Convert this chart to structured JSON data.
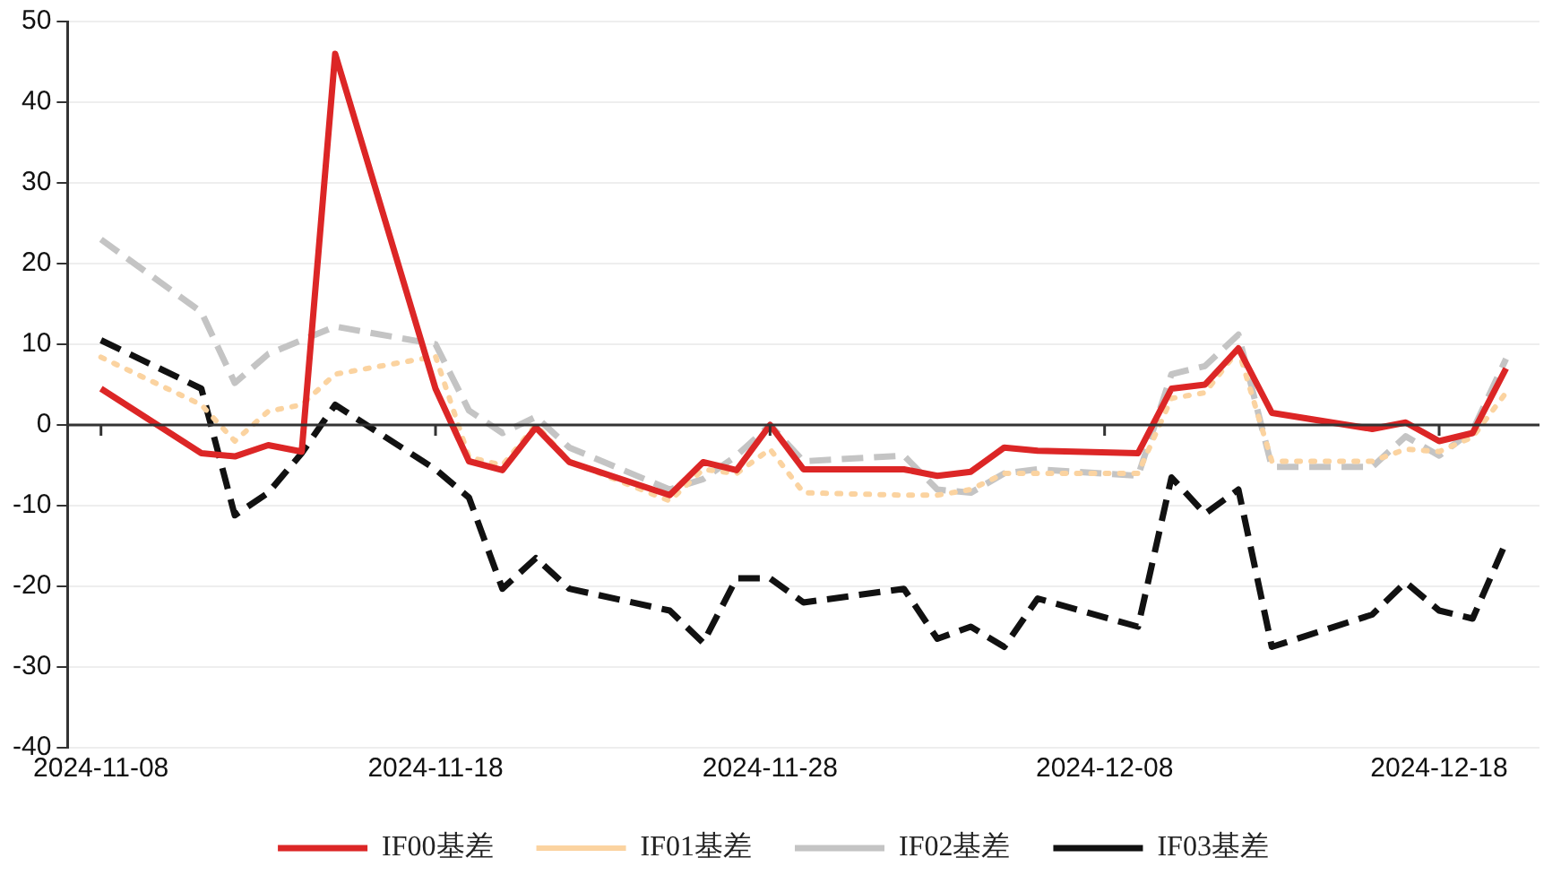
{
  "chart_data": {
    "type": "line",
    "x": [
      "2024-11-08",
      "2024-11-11",
      "2024-11-12",
      "2024-11-13",
      "2024-11-14",
      "2024-11-15",
      "2024-11-18",
      "2024-11-19",
      "2024-11-20",
      "2024-11-21",
      "2024-11-22",
      "2024-11-25",
      "2024-11-26",
      "2024-11-27",
      "2024-11-28",
      "2024-11-29",
      "2024-12-02",
      "2024-12-03",
      "2024-12-04",
      "2024-12-05",
      "2024-12-06",
      "2024-12-09",
      "2024-12-10",
      "2024-12-11",
      "2024-12-12",
      "2024-12-13",
      "2024-12-16",
      "2024-12-17",
      "2024-12-18",
      "2024-12-19",
      "2024-12-20"
    ],
    "series": [
      {
        "name": "IF00基差",
        "color": "#dc2626",
        "line_style": "solid",
        "values": [
          4.5,
          -3.5,
          -3.9,
          -2.5,
          -3.3,
          46,
          4.5,
          -4.5,
          -5.6,
          -0.3,
          -4.6,
          -8.7,
          -4.6,
          -5.6,
          0,
          -5.5,
          -5.5,
          -6.3,
          -5.8,
          -2.8,
          -3.2,
          -3.5,
          4.5,
          5,
          9.5,
          1.5,
          -0.5,
          0.3,
          -2,
          -1,
          7
        ]
      },
      {
        "name": "IF01基差",
        "color": "#fbd3a0",
        "line_style": "dotted",
        "values": [
          8.4,
          2.5,
          -2,
          1.7,
          2.5,
          6.3,
          8.5,
          -4,
          -5,
          0,
          -4.5,
          -9.4,
          -5.5,
          -6,
          -3,
          -8.4,
          -8.7,
          -8.7,
          -8,
          -6,
          -6,
          -6,
          3.3,
          4,
          9.3,
          -4.5,
          -4.5,
          -3,
          -3.3,
          -1.5,
          4
        ]
      },
      {
        "name": "IF02基差",
        "color": "#c4c4c4",
        "line_style": "dashed",
        "values": [
          23,
          14,
          5.2,
          8.8,
          10.5,
          12.2,
          10,
          1.8,
          -1,
          1,
          -2.8,
          -8,
          -6.7,
          -3.8,
          0,
          -4.5,
          -3.8,
          -8,
          -8.4,
          -6,
          -5.5,
          -6.3,
          6.3,
          7.3,
          11.2,
          -5.2,
          -5.2,
          -1.4,
          -3.8,
          -0.7,
          8.2
        ]
      },
      {
        "name": "IF03基差",
        "color": "#111111",
        "line_style": "dashed",
        "values": [
          10.5,
          4.5,
          -11.2,
          -8.4,
          -3.5,
          2.5,
          -5.5,
          -9,
          -20.3,
          -16.5,
          -20.3,
          -23,
          -27,
          -19,
          -19,
          -22,
          -20.3,
          -26.5,
          -25,
          -27.5,
          -21.5,
          -25,
          -6.5,
          -11,
          -8,
          -27.5,
          -23.5,
          -19.5,
          -23,
          -24,
          -14.5
        ]
      }
    ],
    "xlim": [
      "2024-11-07",
      "2024-12-21"
    ],
    "xticks": [
      "2024-11-08",
      "2024-11-18",
      "2024-11-28",
      "2024-12-08",
      "2024-12-18"
    ],
    "ylim": [
      -40,
      50
    ],
    "yticks": [
      -40,
      -30,
      -20,
      -10,
      0,
      10,
      20,
      30,
      40,
      50
    ],
    "grid": "y",
    "legend": "bottom",
    "marker": "none"
  }
}
